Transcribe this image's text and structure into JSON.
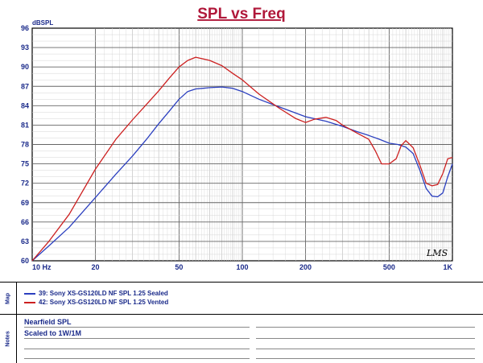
{
  "chart_data": {
    "type": "line",
    "title": "SPL vs Freq",
    "ylabel": "dBSPL",
    "xscale": "log",
    "xlim": [
      10,
      1000
    ],
    "ylim": [
      60,
      96
    ],
    "grid": true,
    "yticks": [
      96,
      93,
      90,
      87,
      84,
      81,
      78,
      75,
      72,
      69,
      66,
      63,
      60
    ],
    "xticks": [
      {
        "value": 10,
        "label": "10 Hz"
      },
      {
        "value": 20,
        "label": "20"
      },
      {
        "value": 50,
        "label": "50"
      },
      {
        "value": 100,
        "label": "100"
      },
      {
        "value": 200,
        "label": "200"
      },
      {
        "value": 500,
        "label": "500"
      },
      {
        "value": 1000,
        "label": "1K"
      }
    ],
    "series": [
      {
        "name": "39: Sony XS-GS120LD NF SPL 1.25 Sealed",
        "color": "#2b3fbf",
        "points": [
          [
            10,
            60
          ],
          [
            12,
            62.3
          ],
          [
            15,
            65.2
          ],
          [
            20,
            69.8
          ],
          [
            25,
            73.4
          ],
          [
            30,
            76.2
          ],
          [
            35,
            78.8
          ],
          [
            40,
            81.2
          ],
          [
            45,
            83.2
          ],
          [
            50,
            85.0
          ],
          [
            55,
            86.2
          ],
          [
            60,
            86.6
          ],
          [
            70,
            86.8
          ],
          [
            80,
            86.9
          ],
          [
            90,
            86.7
          ],
          [
            100,
            86.2
          ],
          [
            120,
            85.0
          ],
          [
            150,
            83.8
          ],
          [
            200,
            82.3
          ],
          [
            250,
            81.6
          ],
          [
            300,
            80.8
          ],
          [
            350,
            80.0
          ],
          [
            400,
            79.4
          ],
          [
            450,
            78.8
          ],
          [
            500,
            78.2
          ],
          [
            550,
            78.0
          ],
          [
            600,
            77.6
          ],
          [
            650,
            76.6
          ],
          [
            700,
            74.0
          ],
          [
            750,
            71.2
          ],
          [
            800,
            70.0
          ],
          [
            850,
            69.9
          ],
          [
            900,
            70.5
          ],
          [
            950,
            73.0
          ],
          [
            1000,
            75.0
          ]
        ]
      },
      {
        "name": "42: Sony XS-GS120LD NF SPL 1.25 Vented",
        "color": "#cc2020",
        "points": [
          [
            10,
            60
          ],
          [
            12,
            63.0
          ],
          [
            15,
            67.2
          ],
          [
            20,
            74.2
          ],
          [
            25,
            78.8
          ],
          [
            30,
            81.8
          ],
          [
            35,
            84.2
          ],
          [
            40,
            86.3
          ],
          [
            45,
            88.3
          ],
          [
            50,
            90.0
          ],
          [
            55,
            91.0
          ],
          [
            60,
            91.5
          ],
          [
            70,
            91.0
          ],
          [
            80,
            90.2
          ],
          [
            90,
            89.0
          ],
          [
            100,
            88.0
          ],
          [
            120,
            85.8
          ],
          [
            150,
            83.6
          ],
          [
            180,
            82.0
          ],
          [
            200,
            81.4
          ],
          [
            220,
            81.9
          ],
          [
            250,
            82.2
          ],
          [
            280,
            81.7
          ],
          [
            300,
            81.0
          ],
          [
            350,
            79.8
          ],
          [
            400,
            78.8
          ],
          [
            430,
            77.0
          ],
          [
            460,
            75.0
          ],
          [
            500,
            75.0
          ],
          [
            540,
            75.8
          ],
          [
            570,
            77.8
          ],
          [
            600,
            78.6
          ],
          [
            650,
            77.5
          ],
          [
            700,
            74.8
          ],
          [
            750,
            72.0
          ],
          [
            800,
            71.6
          ],
          [
            850,
            71.8
          ],
          [
            900,
            73.5
          ],
          [
            950,
            75.8
          ],
          [
            1000,
            76.0
          ]
        ]
      }
    ],
    "annotation": "LMS"
  },
  "map_panel": {
    "label": "Map"
  },
  "notes_panel": {
    "label": "Notes",
    "lines": [
      "Nearfield SPL",
      "Scaled to 1W/1M"
    ]
  }
}
